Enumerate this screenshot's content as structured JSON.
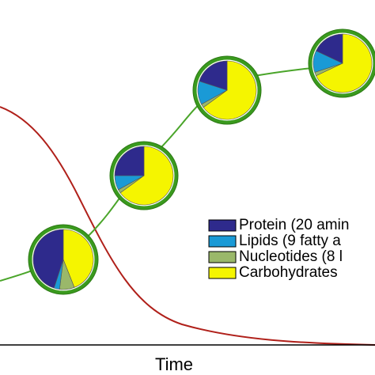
{
  "axis_label": "Time",
  "legend": [
    {
      "label": "Protein (20 amin",
      "color": "#2e2a8c"
    },
    {
      "label": "Lipids (9 fatty a",
      "color": "#1a9ad6"
    },
    {
      "label": "Nucleotides (8 l",
      "color": "#9ab86a"
    },
    {
      "label": "Carbohydrates",
      "color": "#f5f500"
    }
  ],
  "pies": [
    {
      "values": [
        45,
        3,
        8,
        44
      ]
    },
    {
      "values": [
        25,
        8,
        2,
        65
      ]
    },
    {
      "values": [
        20,
        13,
        2,
        65
      ]
    },
    {
      "values": [
        18,
        12,
        2,
        68
      ]
    }
  ]
}
